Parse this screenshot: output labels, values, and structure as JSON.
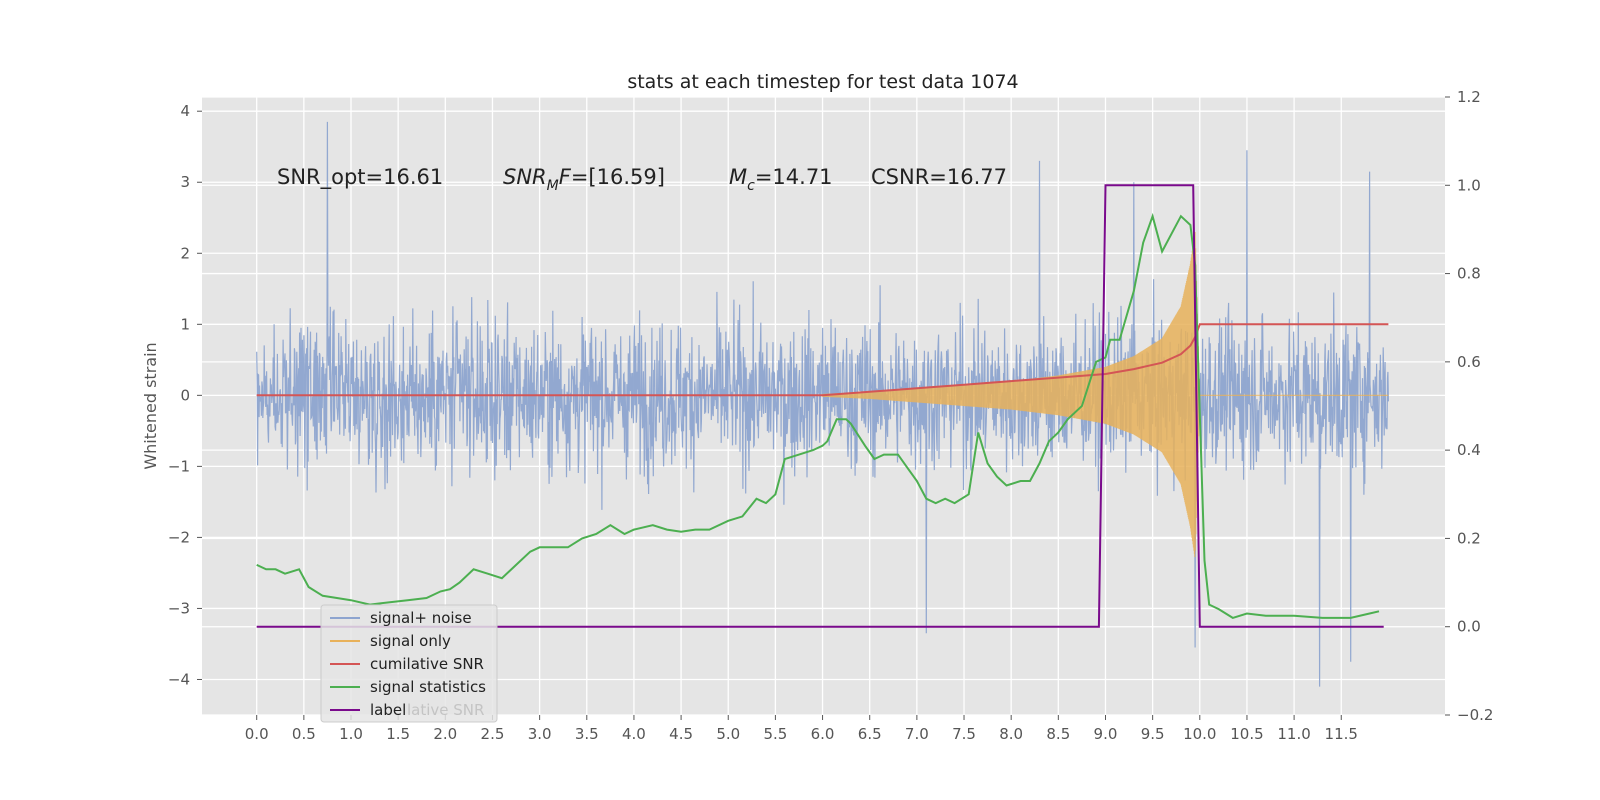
{
  "chart_data": {
    "type": "line",
    "title": "stats at each timestep for test data 1074",
    "ylabel": "Whitened strain",
    "ylabel_right": "",
    "xlim": [
      -0.58,
      12.6
    ],
    "ylim": [
      -4.5,
      4.2
    ],
    "ylim_right": [
      -0.2,
      1.2
    ],
    "x_ticks": [
      "0.0",
      "0.5",
      "1.0",
      "1.5",
      "2.0",
      "2.5",
      "3.0",
      "3.5",
      "4.0",
      "4.5",
      "5.0",
      "5.5",
      "6.0",
      "6.5",
      "7.0",
      "7.5",
      "8.0",
      "8.5",
      "9.0",
      "9.5",
      "10.0",
      "10.5",
      "11.0",
      "11.5"
    ],
    "y_ticks": [
      "−4",
      "−3",
      "−2",
      "−1",
      "0",
      "1",
      "2",
      "3",
      "4"
    ],
    "y_ticks_right": [
      "−0.2",
      "0.0",
      "0.2",
      "0.4",
      "0.6",
      "0.8",
      "1.0",
      "1.2"
    ],
    "grid": true,
    "legend_position": "lower-left",
    "colors": {
      "signal_noise": "#8da4cf",
      "signal_only": "#e8b15a",
      "cumulative_snr": "#d45555",
      "signal_statistics": "#4caf50",
      "label": "#7a0a8c",
      "background": "#e5e5e5"
    },
    "annotations": {
      "snr_opt": "SNR_opt=16.61",
      "snr_mf_base": "SNR",
      "snr_mf_sub": "M",
      "snr_mf_rest": "F=[16.59]",
      "mc_base": "M",
      "mc_sub": "c",
      "mc_rest": "=14.71",
      "csnr": "CSNR=16.77"
    },
    "series": [
      {
        "name": "signal+ noise",
        "x_range": [
          0.0,
          12.0
        ],
        "axis": "left",
        "spikes": [
          [
            0.75,
            3.85
          ],
          [
            6.0,
            0.95
          ],
          [
            7.1,
            -3.35
          ],
          [
            8.3,
            3.3
          ],
          [
            9.3,
            3.0
          ],
          [
            9.95,
            -3.55
          ],
          [
            10.5,
            3.45
          ],
          [
            11.27,
            -4.1
          ],
          [
            11.6,
            -3.75
          ],
          [
            11.8,
            3.15
          ]
        ]
      },
      {
        "name": "signal only",
        "axis": "left",
        "x": [
          6.0,
          6.5,
          7.0,
          7.5,
          8.0,
          8.5,
          9.0,
          9.3,
          9.6,
          9.8,
          9.9,
          9.95,
          10.0
        ],
        "envelope": [
          0.02,
          0.05,
          0.1,
          0.15,
          0.2,
          0.28,
          0.4,
          0.55,
          0.8,
          1.25,
          1.85,
          2.3,
          0.0
        ]
      },
      {
        "name": "cumilative SNR",
        "axis": "left",
        "x": [
          0.0,
          6.0,
          6.5,
          7.0,
          7.5,
          8.0,
          8.5,
          9.0,
          9.3,
          9.6,
          9.8,
          9.9,
          9.95,
          10.0,
          12.0
        ],
        "y": [
          0.0,
          0.0,
          0.05,
          0.1,
          0.15,
          0.2,
          0.25,
          0.3,
          0.37,
          0.46,
          0.58,
          0.7,
          0.82,
          1.0,
          1.0
        ]
      },
      {
        "name": "signal statistics",
        "axis": "right",
        "x": [
          0.0,
          0.1,
          0.2,
          0.3,
          0.45,
          0.55,
          0.7,
          0.85,
          1.0,
          1.2,
          1.4,
          1.6,
          1.8,
          1.95,
          2.05,
          2.15,
          2.3,
          2.45,
          2.6,
          2.75,
          2.9,
          3.0,
          3.2,
          3.3,
          3.45,
          3.6,
          3.75,
          3.9,
          4.0,
          4.2,
          4.35,
          4.5,
          4.65,
          4.8,
          5.0,
          5.15,
          5.3,
          5.4,
          5.5,
          5.6,
          5.75,
          5.9,
          6.0,
          6.05,
          6.15,
          6.25,
          6.3,
          6.45,
          6.55,
          6.65,
          6.75,
          6.8,
          6.9,
          7.0,
          7.1,
          7.2,
          7.3,
          7.4,
          7.55,
          7.65,
          7.75,
          7.85,
          7.95,
          8.1,
          8.2,
          8.3,
          8.4,
          8.5,
          8.6,
          8.75,
          8.9,
          9.0,
          9.05,
          9.15,
          9.3,
          9.4,
          9.5,
          9.6,
          9.7,
          9.8,
          9.9,
          9.95,
          10.0,
          10.05,
          10.1,
          10.2,
          10.35,
          10.5,
          10.7,
          11.0,
          11.3,
          11.6,
          11.8,
          11.9
        ],
        "y": [
          0.14,
          0.13,
          0.13,
          0.12,
          0.13,
          0.09,
          0.07,
          0.065,
          0.06,
          0.05,
          0.055,
          0.06,
          0.065,
          0.08,
          0.085,
          0.1,
          0.13,
          0.12,
          0.11,
          0.14,
          0.17,
          0.18,
          0.18,
          0.18,
          0.2,
          0.21,
          0.23,
          0.21,
          0.22,
          0.23,
          0.22,
          0.215,
          0.22,
          0.22,
          0.24,
          0.25,
          0.29,
          0.28,
          0.3,
          0.38,
          0.39,
          0.4,
          0.41,
          0.42,
          0.47,
          0.47,
          0.46,
          0.41,
          0.38,
          0.39,
          0.39,
          0.39,
          0.36,
          0.33,
          0.29,
          0.28,
          0.29,
          0.28,
          0.3,
          0.44,
          0.37,
          0.34,
          0.32,
          0.33,
          0.33,
          0.37,
          0.42,
          0.44,
          0.47,
          0.5,
          0.6,
          0.61,
          0.65,
          0.65,
          0.76,
          0.87,
          0.93,
          0.85,
          0.89,
          0.93,
          0.91,
          0.82,
          0.48,
          0.15,
          0.05,
          0.04,
          0.02,
          0.03,
          0.025,
          0.025,
          0.02,
          0.02,
          0.03,
          0.035
        ]
      },
      {
        "name": "label",
        "axis": "right",
        "x": [
          0.0,
          8.93,
          9.0,
          9.93,
          10.0,
          11.95
        ],
        "y": [
          0.0,
          0.0,
          1.0,
          1.0,
          0.0,
          0.0
        ]
      }
    ],
    "legend": [
      {
        "key": "signal_noise",
        "label": "signal+ noise"
      },
      {
        "key": "signal_only",
        "label": "signal only"
      },
      {
        "key": "cumulative_snr",
        "label": "cumilative SNR"
      },
      {
        "key": "signal_statistics",
        "label": "signal statistics"
      },
      {
        "key": "label",
        "label": "label"
      }
    ],
    "legend_ghost_text": "lative SNR"
  }
}
